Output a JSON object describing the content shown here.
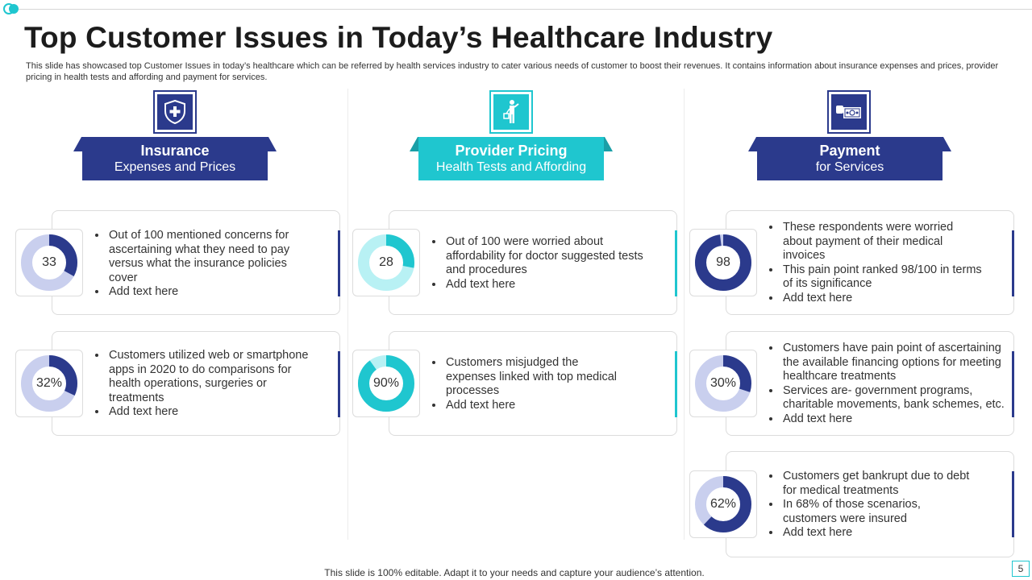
{
  "title": "Top Customer Issues in Today’s Healthcare Industry",
  "subtitle": "This slide has showcased top Customer Issues in today’s healthcare which can be referred by health services industry to cater various needs of customer to boost their revenues. It contains information about insurance expenses and prices, provider pricing in health tests and affording and payment for services.",
  "colors": {
    "navy": "#2b3a8c",
    "teal": "#1fc6cf",
    "navy_light": "#c9cfee",
    "teal_light": "#b8f1f4"
  },
  "columns": [
    {
      "heading": "Insurance",
      "subheading": "Expenses and Prices",
      "icon": "shield-plus-icon",
      "cards": [
        {
          "value": 33,
          "label": "33",
          "bullets": [
            "Out of 100 mentioned concerns for ascertaining what they need to pay versus what the insurance policies cover",
            "Add text here"
          ]
        },
        {
          "value": 32,
          "label": "32%",
          "bullets": [
            "Customers utilized web or smartphone apps in 2020 to do comparisons for health operations, surgeries or treatments",
            "Add text here"
          ]
        }
      ]
    },
    {
      "heading": "Provider Pricing",
      "subheading": "Health Tests and Affording",
      "icon": "doctor-icon",
      "cards": [
        {
          "value": 28,
          "label": "28",
          "bullets": [
            "Out of 100 were worried about affordability for doctor suggested tests and procedures",
            "Add text here"
          ]
        },
        {
          "value": 90,
          "label": "90%",
          "bullets": [
            "Customers misjudged the expenses linked with top medical processes",
            "Add text here"
          ]
        }
      ]
    },
    {
      "heading": "Payment",
      "subheading": "for Services",
      "icon": "cash-payment-icon",
      "cards": [
        {
          "value": 98,
          "label": "98",
          "bullets": [
            "These respondents were worried about payment of their medical invoices",
            "This pain point ranked 98/100 in terms of its significance",
            "Add text here"
          ]
        },
        {
          "value": 30,
          "label": "30%",
          "bullets": [
            "Customers have pain point of ascertaining the available financing options for meeting healthcare treatments",
            "Services are- government programs, charitable movements, bank schemes, etc.",
            "Add text here"
          ]
        },
        {
          "value": 62,
          "label": "62%",
          "bullets": [
            "Customers get bankrupt due to debt for medical treatments",
            "In 68% of those scenarios, customers were insured",
            "Add text here"
          ]
        }
      ]
    }
  ],
  "footer": "This slide is 100% editable. Adapt it to your needs and capture your audience’s attention.",
  "page_number": "5"
}
